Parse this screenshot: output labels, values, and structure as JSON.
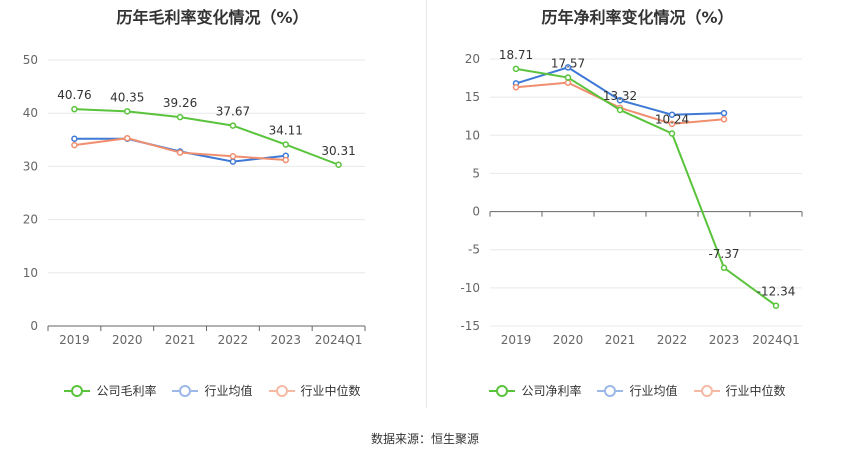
{
  "chart_data": [
    {
      "type": "line",
      "title": "历年毛利率变化情况（%）",
      "categories": [
        "2019",
        "2020",
        "2021",
        "2022",
        "2023",
        "2024Q1"
      ],
      "ylim": [
        0,
        50
      ],
      "yticks": [
        0,
        10,
        20,
        30,
        40,
        50
      ],
      "series": [
        {
          "name": "公司毛利率",
          "color": "#5ac33c",
          "values": [
            40.76,
            40.35,
            39.26,
            37.67,
            34.11,
            30.31
          ],
          "labels": [
            "40.76",
            "40.35",
            "39.26",
            "37.67",
            "34.11",
            "30.31"
          ]
        },
        {
          "name": "行业均值",
          "color": "#3f79d6",
          "values": [
            35.2,
            35.2,
            32.8,
            30.9,
            32.0,
            null
          ],
          "labels": []
        },
        {
          "name": "行业中位数",
          "color": "#f08e6e",
          "values": [
            34.0,
            35.3,
            32.6,
            31.9,
            31.2,
            null
          ],
          "labels": []
        }
      ],
      "legend_labels": [
        "公司毛利率",
        "行业均值",
        "行业中位数"
      ]
    },
    {
      "type": "line",
      "title": "历年净利率变化情况（%）",
      "categories": [
        "2019",
        "2020",
        "2021",
        "2022",
        "2023",
        "2024Q1"
      ],
      "ylim": [
        -15,
        20
      ],
      "yticks": [
        -15,
        -10,
        -5,
        0,
        5,
        10,
        15,
        20
      ],
      "series": [
        {
          "name": "公司净利率",
          "color": "#5ac33c",
          "values": [
            18.71,
            17.57,
            13.32,
            10.24,
            -7.37,
            -12.34
          ],
          "labels": [
            "18.71",
            "17.57",
            "13.32",
            "10.24",
            "-7.37",
            "-12.34"
          ]
        },
        {
          "name": "行业均值",
          "color": "#3f79d6",
          "values": [
            16.8,
            18.9,
            14.6,
            12.7,
            12.9,
            null
          ],
          "labels": []
        },
        {
          "name": "行业中位数",
          "color": "#f08e6e",
          "values": [
            16.3,
            16.9,
            13.6,
            11.5,
            12.1,
            null
          ],
          "labels": []
        }
      ],
      "legend_labels": [
        "公司净利率",
        "行业均值",
        "行业中位数"
      ]
    }
  ],
  "source_text": "数据来源：恒生聚源"
}
